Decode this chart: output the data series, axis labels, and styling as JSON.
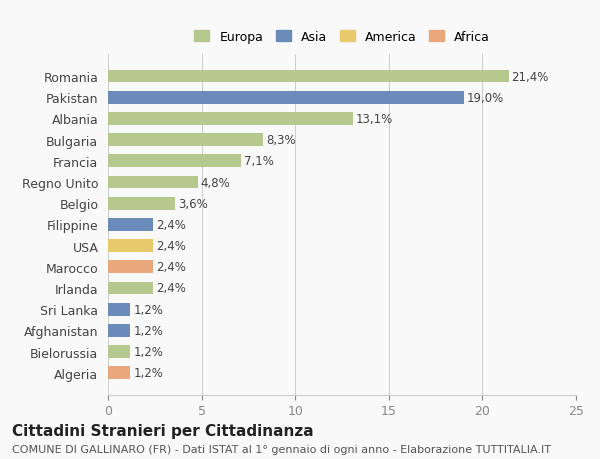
{
  "countries": [
    "Romania",
    "Pakistan",
    "Albania",
    "Bulgaria",
    "Francia",
    "Regno Unito",
    "Belgio",
    "Filippine",
    "USA",
    "Marocco",
    "Irlanda",
    "Sri Lanka",
    "Afghanistan",
    "Bielorussia",
    "Algeria"
  ],
  "values": [
    21.4,
    19.0,
    13.1,
    8.3,
    7.1,
    4.8,
    3.6,
    2.4,
    2.4,
    2.4,
    2.4,
    1.2,
    1.2,
    1.2,
    1.2
  ],
  "labels": [
    "21,4%",
    "19,0%",
    "13,1%",
    "8,3%",
    "7,1%",
    "4,8%",
    "3,6%",
    "2,4%",
    "2,4%",
    "2,4%",
    "2,4%",
    "1,2%",
    "1,2%",
    "1,2%",
    "1,2%"
  ],
  "continents": [
    "Europa",
    "Asia",
    "Europa",
    "Europa",
    "Europa",
    "Europa",
    "Europa",
    "Asia",
    "America",
    "Africa",
    "Europa",
    "Asia",
    "Asia",
    "Europa",
    "Africa"
  ],
  "colors": {
    "Europa": "#b5c98e",
    "Asia": "#6b8cba",
    "America": "#e8c96b",
    "Africa": "#e8a87c"
  },
  "legend_order": [
    "Europa",
    "Asia",
    "America",
    "Africa"
  ],
  "legend_colors": [
    "#b5c98e",
    "#6b8cba",
    "#e8c96b",
    "#e8a87c"
  ],
  "xlim": [
    0,
    25
  ],
  "xticks": [
    0,
    5,
    10,
    15,
    20,
    25
  ],
  "title": "Cittadini Stranieri per Cittadinanza",
  "subtitle": "COMUNE DI GALLINARO (FR) - Dati ISTAT al 1° gennaio di ogni anno - Elaborazione TUTTITALIA.IT",
  "background_color": "#f9f9f9",
  "bar_height": 0.6,
  "label_fontsize": 8.5,
  "axis_fontsize": 9,
  "title_fontsize": 11,
  "subtitle_fontsize": 8
}
